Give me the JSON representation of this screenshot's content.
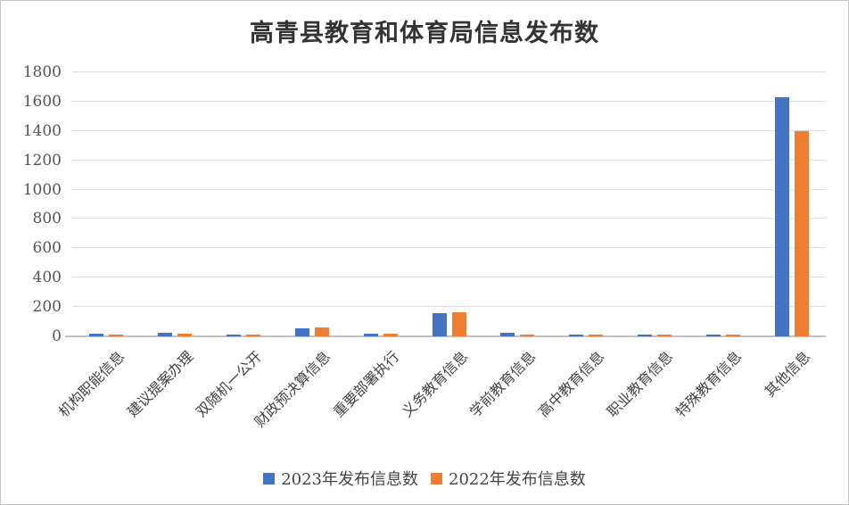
{
  "chart_data": {
    "type": "bar",
    "title": "高青县教育和体育局信息发布数",
    "categories": [
      "机构职能信息",
      "建议提案办理",
      "双随机一公开",
      "财政预决算信息",
      "重要部署执行",
      "义务教育信息",
      "学前教育信息",
      "高中教育信息",
      "职业教育信息",
      "特殊教育信息",
      "其他信息"
    ],
    "series": [
      {
        "name": "2023年发布信息数",
        "color": "#4472C4",
        "values": [
          20,
          22,
          15,
          55,
          20,
          160,
          22,
          13,
          13,
          12,
          1630
        ]
      },
      {
        "name": "2022年发布信息数",
        "color": "#ED7D31",
        "values": [
          10,
          20,
          12,
          58,
          20,
          163,
          10,
          14,
          13,
          13,
          1400
        ]
      }
    ],
    "xlabel": "",
    "ylabel": "",
    "ylim": [
      0,
      1800
    ],
    "ytick_step": 200,
    "ytick_labels": [
      "0",
      "200",
      "400",
      "600",
      "800",
      "1000",
      "1200",
      "1400",
      "1600",
      "1800"
    ],
    "grid": "horizontal",
    "legend_position": "bottom",
    "colors": {
      "series_2023": "#4472C4",
      "series_2022": "#ED7D31",
      "gridline": "#DCDCDC",
      "axis_line": "#C0C0C0",
      "title_text": "#333333",
      "axis_text": "#555555"
    }
  }
}
